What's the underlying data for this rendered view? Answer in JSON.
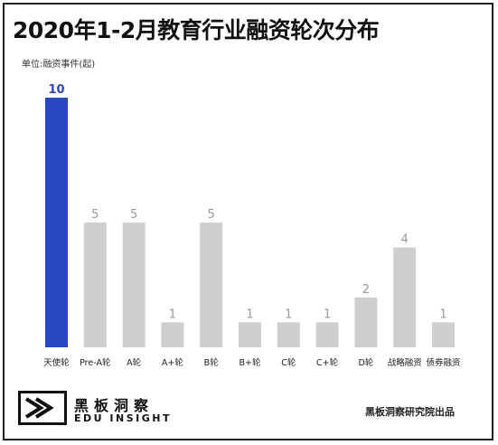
{
  "chart_data": {
    "type": "bar",
    "title": "2020年1-2月教育行业融资轮次分布",
    "unit_label": "单位:融资事件(起)",
    "categories": [
      "天使轮",
      "Pre-A轮",
      "A轮",
      "A+轮",
      "B轮",
      "B+轮",
      "C轮",
      "C+轮",
      "D轮",
      "战略融资",
      "债券融资"
    ],
    "values": [
      10,
      5,
      5,
      1,
      5,
      1,
      1,
      1,
      2,
      4,
      1
    ],
    "ylim": [
      0,
      10
    ],
    "grid": false,
    "highlight_index": 0,
    "colors": {
      "highlight": "#2a47c2",
      "bar": "#cfcfcf",
      "highlight_label": "#2a47c2",
      "label": "#9a9a9a"
    }
  },
  "footer": {
    "brand_cn": "黑板洞察",
    "brand_en": "EDU INSIGHT",
    "source": "黑板洞察研究院出品"
  }
}
